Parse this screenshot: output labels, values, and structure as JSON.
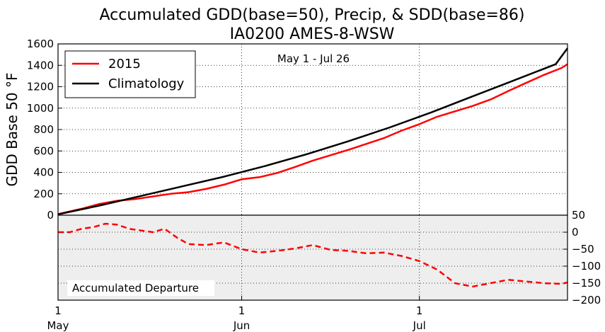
{
  "chart_data": [
    {
      "type": "line",
      "title": "Accumulated GDD(base=50), Precip, & SDD(base=86)",
      "subtitle": "IA0200 AMES-8-WSW",
      "annotation": "May 1 - Jul 26",
      "ylabel": "GDD Base 50 °F",
      "ylim": [
        0,
        1600
      ],
      "yticks": [
        "0",
        "200",
        "400",
        "600",
        "800",
        "1000",
        "1200",
        "1400",
        "1600"
      ],
      "xticks": [
        {
          "day": 1,
          "label": "1",
          "month": "May"
        },
        {
          "day": 32,
          "label": "1",
          "month": "Jun"
        },
        {
          "day": 62,
          "label": "1",
          "month": "Jul"
        }
      ],
      "x_range_days": [
        1,
        87
      ],
      "grid": true,
      "legend_position": "top-left",
      "series": [
        {
          "name": "2015",
          "color": "#ff0000",
          "points": [
            [
              1,
              10
            ],
            [
              5,
              60
            ],
            [
              8,
              105
            ],
            [
              11,
              135
            ],
            [
              14,
              150
            ],
            [
              17,
              175
            ],
            [
              20,
              200
            ],
            [
              23,
              215
            ],
            [
              26,
              245
            ],
            [
              29,
              285
            ],
            [
              32,
              335
            ],
            [
              35,
              355
            ],
            [
              38,
              395
            ],
            [
              41,
              450
            ],
            [
              44,
              510
            ],
            [
              47,
              560
            ],
            [
              50,
              610
            ],
            [
              53,
              665
            ],
            [
              56,
              720
            ],
            [
              59,
              790
            ],
            [
              62,
              850
            ],
            [
              65,
              920
            ],
            [
              68,
              970
            ],
            [
              71,
              1020
            ],
            [
              74,
              1080
            ],
            [
              77,
              1160
            ],
            [
              80,
              1235
            ],
            [
              83,
              1310
            ],
            [
              86,
              1375
            ],
            [
              87,
              1410
            ]
          ]
        },
        {
          "name": "Climatology",
          "color": "#000000",
          "points": [
            [
              1,
              8
            ],
            [
              8,
              90
            ],
            [
              15,
              180
            ],
            [
              22,
              270
            ],
            [
              29,
              360
            ],
            [
              36,
              460
            ],
            [
              43,
              570
            ],
            [
              50,
              690
            ],
            [
              57,
              820
            ],
            [
              64,
              960
            ],
            [
              71,
              1110
            ],
            [
              78,
              1260
            ],
            [
              85,
              1410
            ],
            [
              87,
              1560
            ]
          ]
        }
      ]
    },
    {
      "type": "line",
      "annotation": "Accumulated Departure",
      "ylim": [
        -200,
        50
      ],
      "yticks": [
        "50",
        "0",
        "−50",
        "−100",
        "−150",
        "−200"
      ],
      "grid": true,
      "background": "#eeeeee",
      "series": [
        {
          "color": "#ff0000",
          "style": "dashed",
          "points": [
            [
              1,
              0
            ],
            [
              3,
              0
            ],
            [
              5,
              10
            ],
            [
              7,
              15
            ],
            [
              9,
              25
            ],
            [
              11,
              22
            ],
            [
              13,
              10
            ],
            [
              15,
              5
            ],
            [
              17,
              0
            ],
            [
              19,
              10
            ],
            [
              21,
              -15
            ],
            [
              23,
              -35
            ],
            [
              26,
              -38
            ],
            [
              29,
              -30
            ],
            [
              32,
              -50
            ],
            [
              35,
              -60
            ],
            [
              38,
              -55
            ],
            [
              41,
              -48
            ],
            [
              44,
              -38
            ],
            [
              47,
              -52
            ],
            [
              50,
              -55
            ],
            [
              53,
              -62
            ],
            [
              56,
              -60
            ],
            [
              59,
              -70
            ],
            [
              62,
              -85
            ],
            [
              65,
              -110
            ],
            [
              68,
              -150
            ],
            [
              71,
              -160
            ],
            [
              74,
              -150
            ],
            [
              77,
              -140
            ],
            [
              80,
              -145
            ],
            [
              83,
              -150
            ],
            [
              86,
              -152
            ],
            [
              87,
              -148
            ]
          ]
        }
      ]
    }
  ]
}
